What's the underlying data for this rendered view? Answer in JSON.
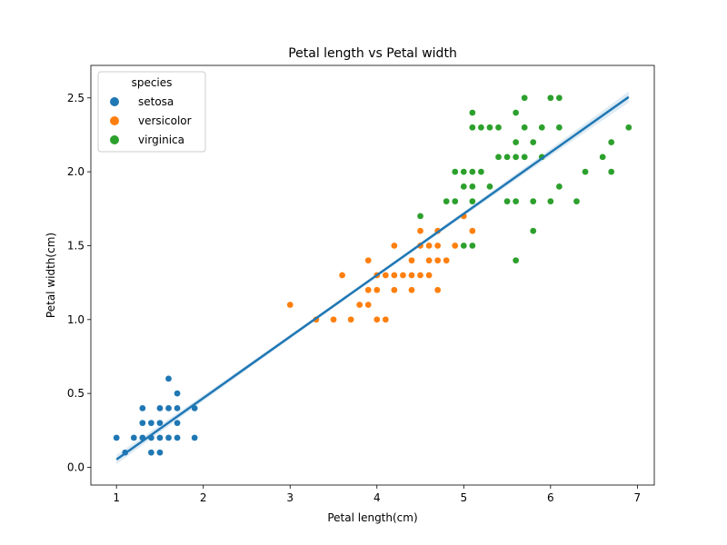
{
  "chart_data": {
    "type": "scatter",
    "title": "Petal length vs Petal width",
    "xlabel": "Petal length(cm)",
    "ylabel": "Petal width(cm)",
    "xlim": [
      0.705,
      7.195
    ],
    "ylim": [
      -0.12,
      2.72
    ],
    "xticks": [
      1,
      2,
      3,
      4,
      5,
      6,
      7
    ],
    "yticks": [
      0.0,
      0.5,
      1.0,
      1.5,
      2.0,
      2.5
    ],
    "ytick_labels": [
      "0.0",
      "0.5",
      "1.0",
      "1.5",
      "2.0",
      "2.5"
    ],
    "grid": false,
    "legend": {
      "title": "species",
      "placement": "top-left"
    },
    "series": [
      {
        "name": "setosa",
        "color": "#1f77b4",
        "points": [
          [
            1.4,
            0.2
          ],
          [
            1.4,
            0.2
          ],
          [
            1.3,
            0.2
          ],
          [
            1.5,
            0.2
          ],
          [
            1.4,
            0.2
          ],
          [
            1.7,
            0.4
          ],
          [
            1.4,
            0.3
          ],
          [
            1.5,
            0.2
          ],
          [
            1.4,
            0.2
          ],
          [
            1.5,
            0.1
          ],
          [
            1.5,
            0.2
          ],
          [
            1.6,
            0.2
          ],
          [
            1.4,
            0.1
          ],
          [
            1.1,
            0.1
          ],
          [
            1.2,
            0.2
          ],
          [
            1.5,
            0.4
          ],
          [
            1.3,
            0.4
          ],
          [
            1.4,
            0.3
          ],
          [
            1.7,
            0.3
          ],
          [
            1.5,
            0.3
          ],
          [
            1.7,
            0.2
          ],
          [
            1.5,
            0.4
          ],
          [
            1.0,
            0.2
          ],
          [
            1.7,
            0.5
          ],
          [
            1.9,
            0.2
          ],
          [
            1.6,
            0.2
          ],
          [
            1.6,
            0.4
          ],
          [
            1.5,
            0.2
          ],
          [
            1.4,
            0.2
          ],
          [
            1.6,
            0.2
          ],
          [
            1.6,
            0.2
          ],
          [
            1.5,
            0.4
          ],
          [
            1.5,
            0.1
          ],
          [
            1.4,
            0.2
          ],
          [
            1.5,
            0.2
          ],
          [
            1.2,
            0.2
          ],
          [
            1.3,
            0.2
          ],
          [
            1.4,
            0.1
          ],
          [
            1.3,
            0.2
          ],
          [
            1.5,
            0.2
          ],
          [
            1.3,
            0.3
          ],
          [
            1.3,
            0.3
          ],
          [
            1.3,
            0.2
          ],
          [
            1.6,
            0.6
          ],
          [
            1.9,
            0.4
          ],
          [
            1.4,
            0.3
          ],
          [
            1.6,
            0.2
          ],
          [
            1.4,
            0.2
          ],
          [
            1.5,
            0.2
          ],
          [
            1.4,
            0.2
          ]
        ]
      },
      {
        "name": "versicolor",
        "color": "#ff7f0e",
        "points": [
          [
            4.7,
            1.4
          ],
          [
            4.5,
            1.5
          ],
          [
            4.9,
            1.5
          ],
          [
            4.0,
            1.3
          ],
          [
            4.6,
            1.5
          ],
          [
            4.5,
            1.3
          ],
          [
            4.7,
            1.6
          ],
          [
            3.3,
            1.0
          ],
          [
            4.6,
            1.3
          ],
          [
            3.9,
            1.4
          ],
          [
            3.5,
            1.0
          ],
          [
            4.2,
            1.5
          ],
          [
            4.0,
            1.0
          ],
          [
            4.7,
            1.4
          ],
          [
            3.6,
            1.3
          ],
          [
            4.4,
            1.4
          ],
          [
            4.5,
            1.5
          ],
          [
            4.1,
            1.0
          ],
          [
            4.5,
            1.5
          ],
          [
            3.9,
            1.1
          ],
          [
            4.8,
            1.8
          ],
          [
            4.0,
            1.3
          ],
          [
            4.9,
            1.5
          ],
          [
            4.7,
            1.2
          ],
          [
            4.3,
            1.3
          ],
          [
            4.4,
            1.4
          ],
          [
            4.8,
            1.4
          ],
          [
            5.0,
            1.7
          ],
          [
            4.5,
            1.5
          ],
          [
            3.5,
            1.0
          ],
          [
            3.8,
            1.1
          ],
          [
            3.7,
            1.0
          ],
          [
            3.9,
            1.2
          ],
          [
            5.1,
            1.6
          ],
          [
            4.5,
            1.5
          ],
          [
            4.5,
            1.6
          ],
          [
            4.7,
            1.5
          ],
          [
            4.4,
            1.3
          ],
          [
            4.1,
            1.3
          ],
          [
            4.0,
            1.3
          ],
          [
            4.4,
            1.2
          ],
          [
            4.6,
            1.4
          ],
          [
            4.0,
            1.2
          ],
          [
            3.3,
            1.0
          ],
          [
            4.2,
            1.3
          ],
          [
            4.2,
            1.2
          ],
          [
            4.2,
            1.3
          ],
          [
            4.3,
            1.3
          ],
          [
            3.0,
            1.1
          ],
          [
            4.1,
            1.3
          ]
        ]
      },
      {
        "name": "virginica",
        "color": "#2ca02c",
        "points": [
          [
            6.0,
            2.5
          ],
          [
            5.1,
            1.9
          ],
          [
            5.9,
            2.1
          ],
          [
            5.6,
            1.8
          ],
          [
            5.8,
            2.2
          ],
          [
            6.6,
            2.1
          ],
          [
            4.5,
            1.7
          ],
          [
            6.3,
            1.8
          ],
          [
            5.8,
            1.8
          ],
          [
            6.1,
            2.5
          ],
          [
            5.1,
            2.0
          ],
          [
            5.3,
            1.9
          ],
          [
            5.5,
            2.1
          ],
          [
            5.0,
            2.0
          ],
          [
            5.1,
            2.4
          ],
          [
            5.3,
            2.3
          ],
          [
            5.5,
            1.8
          ],
          [
            6.7,
            2.2
          ],
          [
            6.9,
            2.3
          ],
          [
            5.0,
            1.5
          ],
          [
            5.7,
            2.3
          ],
          [
            4.9,
            2.0
          ],
          [
            6.7,
            2.0
          ],
          [
            4.9,
            1.8
          ],
          [
            5.7,
            2.1
          ],
          [
            6.0,
            1.8
          ],
          [
            4.8,
            1.8
          ],
          [
            4.9,
            1.8
          ],
          [
            5.6,
            2.1
          ],
          [
            5.8,
            1.6
          ],
          [
            6.1,
            1.9
          ],
          [
            6.4,
            2.0
          ],
          [
            5.6,
            2.2
          ],
          [
            5.1,
            1.5
          ],
          [
            5.6,
            1.4
          ],
          [
            6.1,
            2.3
          ],
          [
            5.6,
            2.4
          ],
          [
            5.5,
            1.8
          ],
          [
            4.8,
            1.8
          ],
          [
            5.4,
            2.1
          ],
          [
            5.6,
            2.4
          ],
          [
            5.1,
            2.3
          ],
          [
            5.1,
            1.9
          ],
          [
            5.9,
            2.3
          ],
          [
            5.7,
            2.5
          ],
          [
            5.2,
            2.3
          ],
          [
            5.0,
            1.9
          ],
          [
            5.2,
            2.0
          ],
          [
            5.4,
            2.3
          ],
          [
            5.1,
            1.8
          ]
        ]
      }
    ],
    "regression": {
      "color": "#1f77b4",
      "slope": 0.4158,
      "intercept": -0.3631,
      "x_range": [
        1.0,
        6.9
      ],
      "ci_color": "#1f77b4"
    }
  }
}
